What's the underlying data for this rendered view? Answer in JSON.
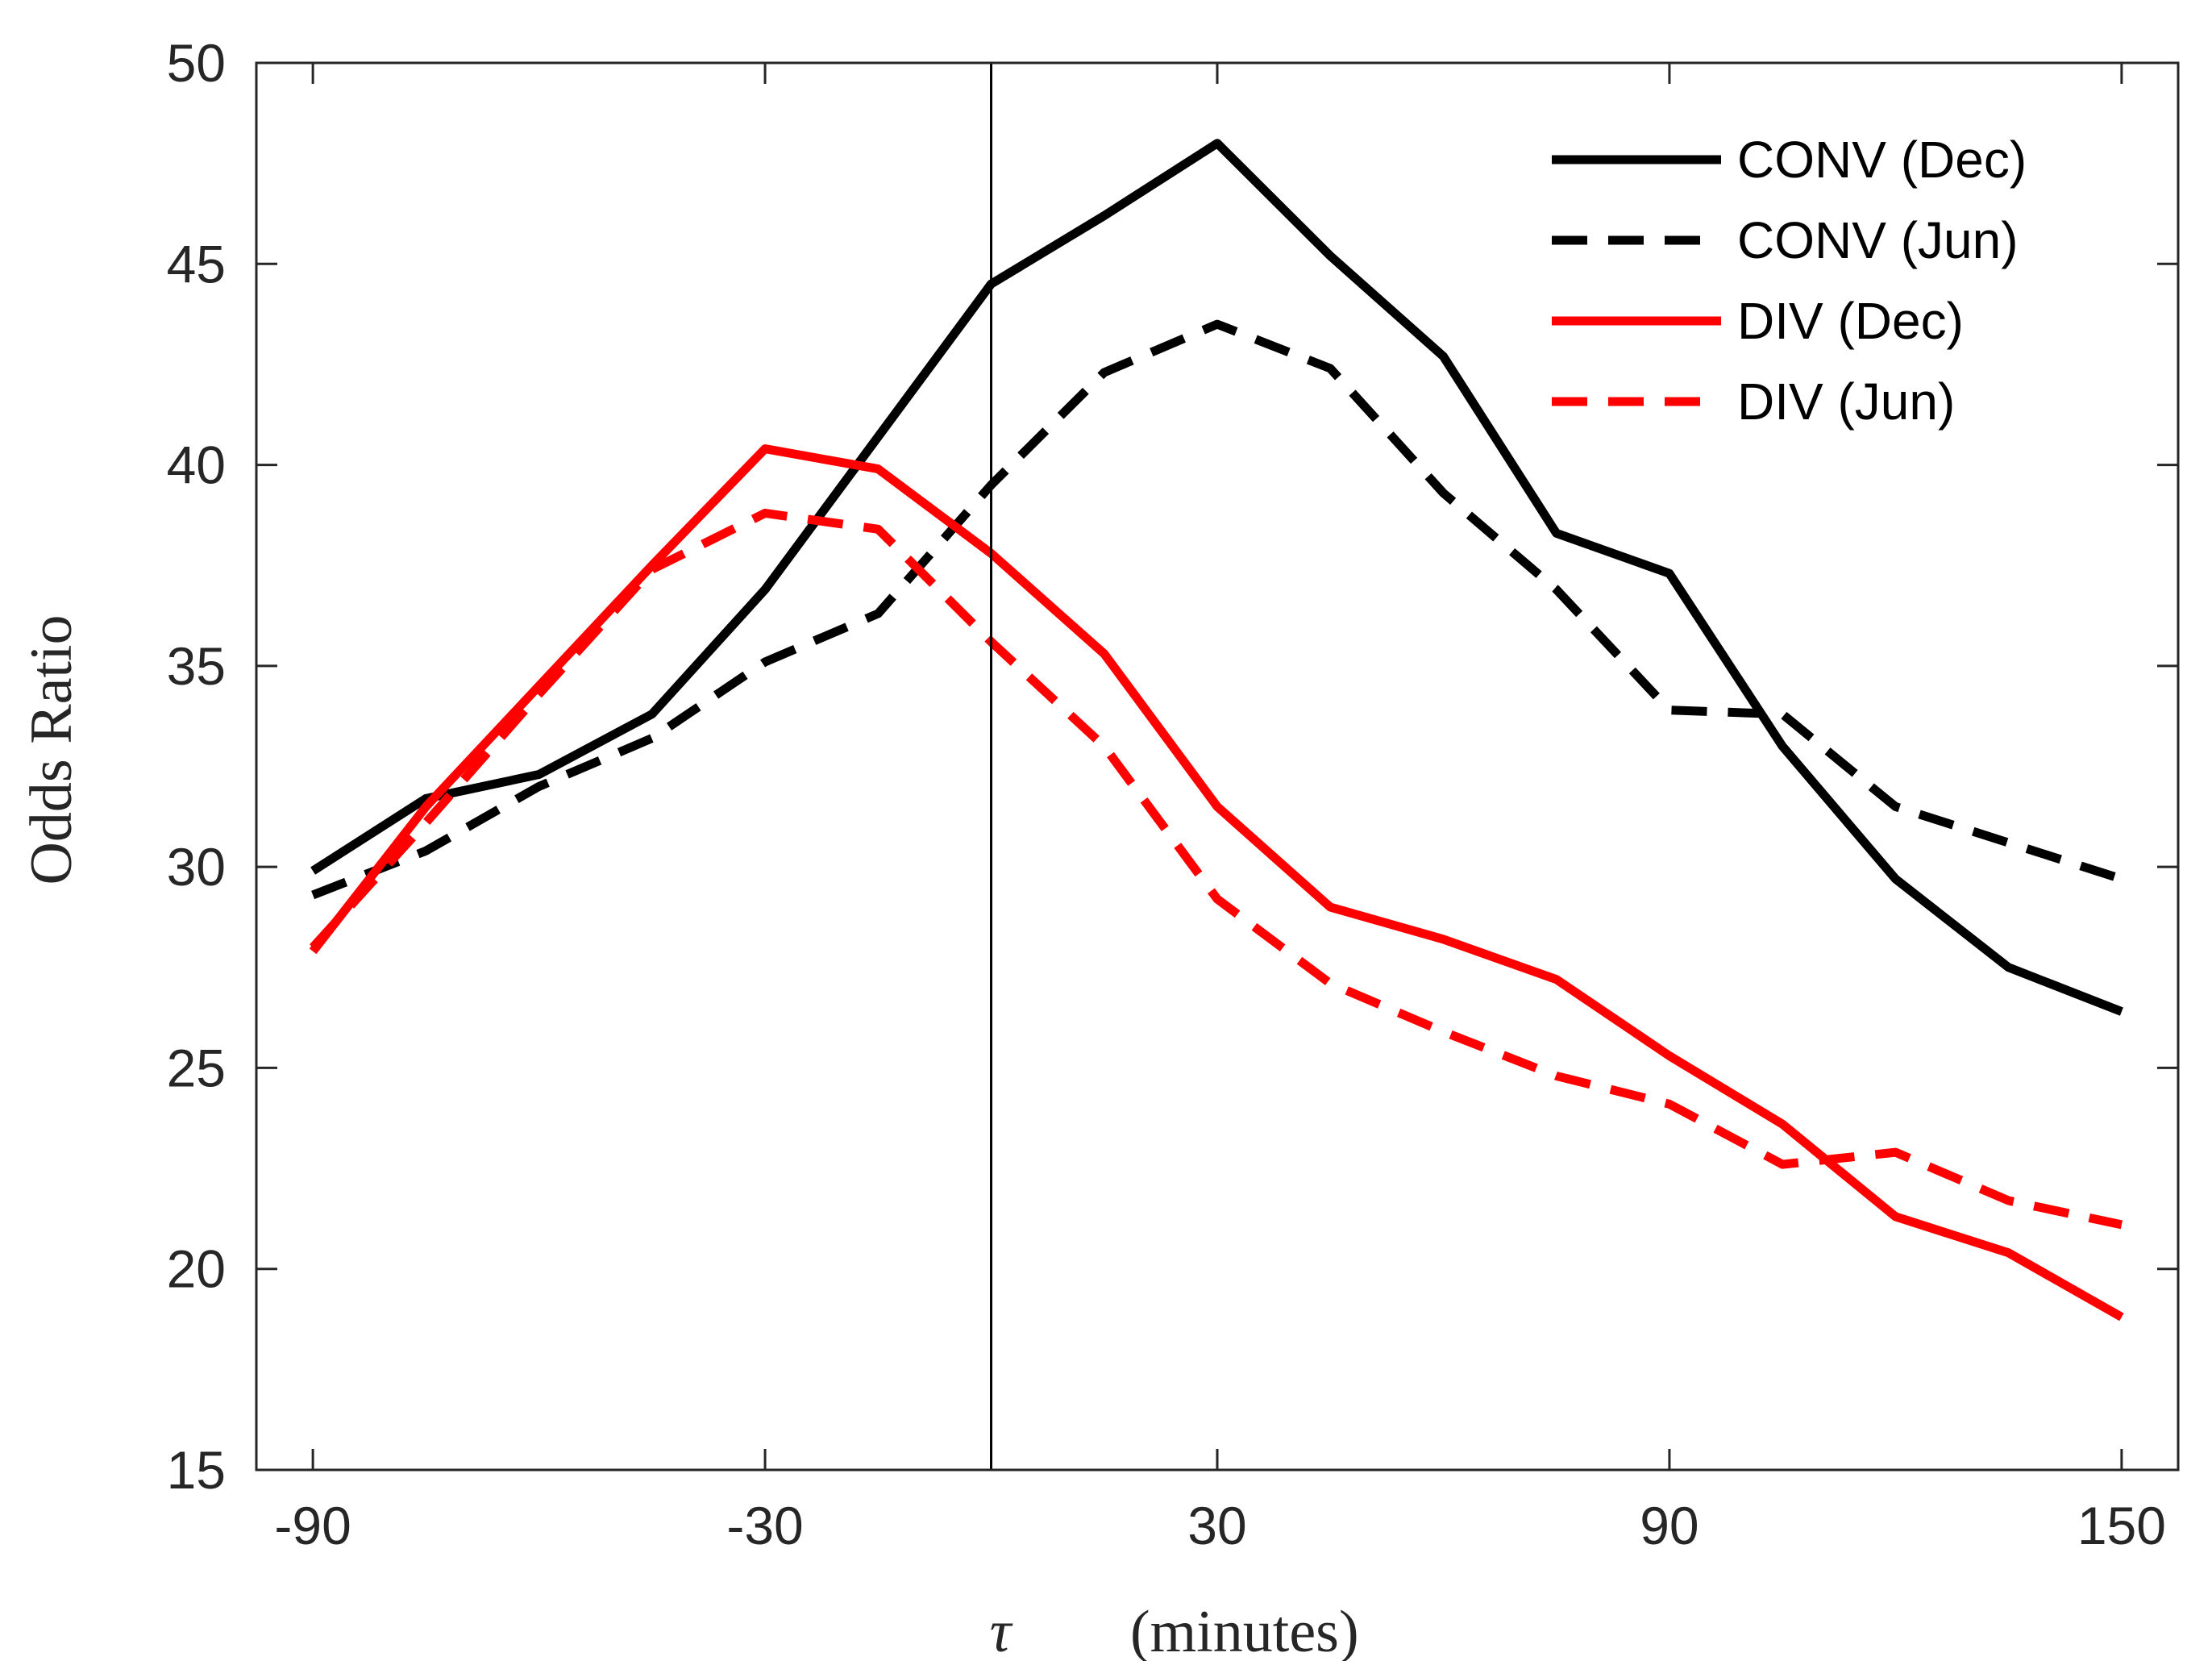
{
  "chart_data": {
    "type": "line",
    "title": "",
    "xlabel_symbol": "τ",
    "xlabel": "(minutes)",
    "ylabel": "Odds Ratio",
    "xlim": [
      -97.5,
      157.5
    ],
    "ylim": [
      15,
      50
    ],
    "xticks": [
      -90,
      -30,
      30,
      90,
      150
    ],
    "xtick_labels": [
      "-90",
      "-30",
      "30",
      "90",
      "150"
    ],
    "yticks": [
      15,
      20,
      25,
      30,
      35,
      40,
      45,
      50
    ],
    "ytick_labels": [
      "15",
      "20",
      "25",
      "30",
      "35",
      "40",
      "45",
      "50"
    ],
    "reference_line_x": 0,
    "grid": false,
    "legend_position": "top-right",
    "x": [
      -90,
      -75,
      -60,
      -45,
      -30,
      -15,
      0,
      15,
      30,
      45,
      60,
      75,
      90,
      105,
      120,
      135,
      150
    ],
    "series": [
      {
        "name": "CONV (Dec)",
        "color": "#000000",
        "dash": "solid",
        "values": [
          29.9,
          31.7,
          32.3,
          33.8,
          36.9,
          40.7,
          44.5,
          46.2,
          48.0,
          45.2,
          42.7,
          38.3,
          37.3,
          33.0,
          29.7,
          27.5,
          26.4
        ]
      },
      {
        "name": "CONV (Jun)",
        "color": "#000000",
        "dash": "dashed",
        "values": [
          29.3,
          30.4,
          32.0,
          33.2,
          35.1,
          36.3,
          39.5,
          42.3,
          43.5,
          42.4,
          39.3,
          36.9,
          33.9,
          33.8,
          31.5,
          30.6,
          29.7
        ]
      },
      {
        "name": "DIV (Dec)",
        "color": "#ff0000",
        "dash": "solid",
        "values": [
          27.9,
          31.5,
          34.5,
          37.5,
          40.4,
          39.9,
          37.8,
          35.3,
          31.5,
          29.0,
          28.2,
          27.2,
          25.3,
          23.6,
          21.3,
          20.4,
          18.8
        ]
      },
      {
        "name": "DIV (Jun)",
        "color": "#ff0000",
        "dash": "dashed",
        "values": [
          28.0,
          31.1,
          34.3,
          37.4,
          38.8,
          38.4,
          35.6,
          33.0,
          29.2,
          27.1,
          25.9,
          24.8,
          24.1,
          22.6,
          22.9,
          21.7,
          21.1
        ]
      }
    ]
  }
}
